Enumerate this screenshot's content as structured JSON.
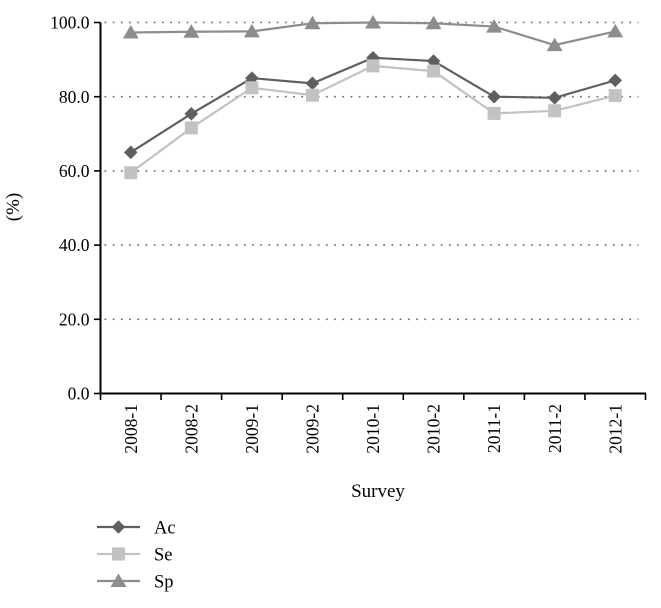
{
  "chart_data": {
    "type": "line",
    "title": "",
    "xlabel": "Survey",
    "ylabel": "(%)",
    "categories": [
      "2008-1",
      "2008-2",
      "2009-1",
      "2009-2",
      "2010-1",
      "2010-2",
      "2011-1",
      "2011-2",
      "2012-1"
    ],
    "y_ticks": [
      "0.0",
      "20.0",
      "40.0",
      "60.0",
      "80.0",
      "100.0"
    ],
    "ylim": [
      0,
      100
    ],
    "y_tick_step": 20,
    "grid": "horizontal-dotted",
    "legend_position": "bottom-left",
    "series": [
      {
        "name": "Ac",
        "marker": "diamond",
        "color": "#5f5f5f",
        "values": [
          65.0,
          75.4,
          85.0,
          83.6,
          90.5,
          89.6,
          80.0,
          79.7,
          84.4
        ]
      },
      {
        "name": "Se",
        "marker": "square",
        "color": "#c2c2c2",
        "values": [
          59.5,
          71.6,
          82.4,
          80.4,
          88.3,
          86.9,
          75.5,
          76.2,
          80.3
        ]
      },
      {
        "name": "Sp",
        "marker": "triangle",
        "color": "#8d8d8d",
        "values": [
          97.3,
          97.5,
          97.6,
          99.8,
          100.0,
          99.8,
          98.9,
          93.9,
          97.6
        ]
      }
    ],
    "colors": {
      "axis": "#000000",
      "gridline": "#707070",
      "text": "#000000",
      "background": "#ffffff"
    }
  }
}
